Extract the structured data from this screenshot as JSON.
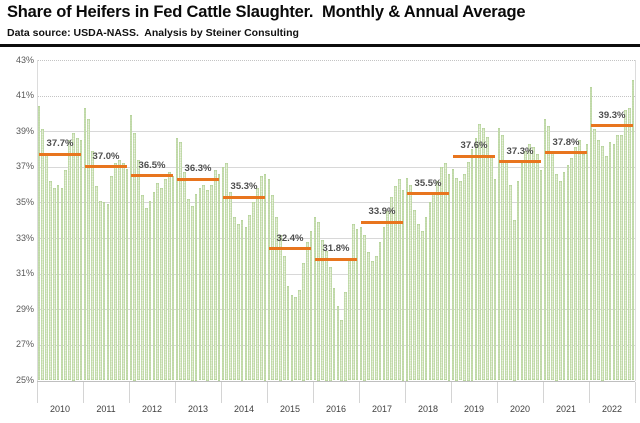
{
  "header": {
    "title": "Share of Heifers in Fed Cattle Slaughter.  Monthly & Annual Average",
    "subtitle": "Data source: USDA-NASS.  Analysis by Steiner Consulting"
  },
  "chart_data": {
    "type": "bar",
    "title": "Share of Heifers in Fed Cattle Slaughter. Monthly & Annual Average",
    "xlabel": "",
    "ylabel": "",
    "y_axis": {
      "min": 25,
      "max": 43,
      "step": 2,
      "unit": "%",
      "dotted_gridlines": [
        43,
        41
      ]
    },
    "legend": "none",
    "grid": "horizontal",
    "series_description": [
      {
        "name": "Monthly share of heifers",
        "type": "bar"
      },
      {
        "name": "Annual average",
        "type": "line-segment"
      }
    ],
    "months_per_year": 12,
    "years": [
      {
        "year": "2010",
        "annual_avg": 37.7,
        "monthly": [
          40.4,
          39.1,
          37.8,
          36.2,
          35.8,
          36.0,
          35.8,
          36.8,
          38.5,
          38.9,
          38.6,
          38.5
        ]
      },
      {
        "year": "2011",
        "annual_avg": 37.0,
        "monthly": [
          40.3,
          39.7,
          37.9,
          35.9,
          35.1,
          35.0,
          34.9,
          36.5,
          37.2,
          37.4,
          37.2,
          36.9
        ]
      },
      {
        "year": "2012",
        "annual_avg": 36.5,
        "monthly": [
          39.9,
          38.9,
          37.4,
          35.4,
          34.7,
          35.1,
          35.6,
          36.1,
          35.8,
          36.3,
          36.7,
          36.5
        ]
      },
      {
        "year": "2013",
        "annual_avg": 36.3,
        "monthly": [
          38.6,
          38.4,
          36.7,
          35.2,
          34.8,
          35.5,
          35.8,
          36.0,
          35.7,
          36.0,
          36.8,
          36.6
        ]
      },
      {
        "year": "2014",
        "annual_avg": 35.3,
        "monthly": [
          37.0,
          37.2,
          35.6,
          34.2,
          33.8,
          34.0,
          33.6,
          34.3,
          35.0,
          35.8,
          36.5,
          36.6
        ]
      },
      {
        "year": "2015",
        "annual_avg": 32.4,
        "monthly": [
          36.3,
          35.4,
          34.2,
          33.2,
          32.0,
          30.3,
          29.8,
          29.7,
          30.1,
          31.6,
          32.8,
          33.4
        ]
      },
      {
        "year": "2016",
        "annual_avg": 31.8,
        "monthly": [
          34.2,
          33.9,
          32.9,
          32.3,
          31.4,
          30.2,
          29.2,
          28.4,
          30.0,
          31.8,
          33.8,
          33.5
        ]
      },
      {
        "year": "2017",
        "annual_avg": 33.9,
        "monthly": [
          33.6,
          33.2,
          32.2,
          31.7,
          32.0,
          32.8,
          33.6,
          34.5,
          35.3,
          35.9,
          36.3,
          35.7
        ]
      },
      {
        "year": "2018",
        "annual_avg": 35.5,
        "monthly": [
          36.4,
          36.0,
          34.6,
          33.8,
          33.4,
          34.2,
          35.0,
          35.6,
          36.2,
          37.0,
          37.2,
          36.6
        ]
      },
      {
        "year": "2019",
        "annual_avg": 37.6,
        "monthly": [
          36.9,
          36.4,
          36.2,
          36.6,
          37.3,
          38.0,
          38.6,
          39.4,
          39.2,
          38.7,
          37.6,
          36.3
        ]
      },
      {
        "year": "2020",
        "annual_avg": 37.3,
        "monthly": [
          39.2,
          38.8,
          37.4,
          36.0,
          34.0,
          36.2,
          37.2,
          37.9,
          38.3,
          38.1,
          37.7,
          36.8
        ]
      },
      {
        "year": "2021",
        "annual_avg": 37.8,
        "monthly": [
          39.7,
          39.3,
          37.9,
          36.6,
          36.2,
          36.7,
          37.1,
          37.5,
          38.1,
          38.5,
          37.7,
          38.3
        ]
      },
      {
        "year": "2022",
        "annual_avg": 39.3,
        "monthly": [
          41.5,
          39.1,
          38.5,
          38.2,
          37.6,
          38.4,
          38.3,
          38.8,
          38.8,
          40.2,
          40.3,
          41.9
        ]
      }
    ],
    "colors": {
      "bar_fill": "#d9e8c8",
      "bar_edge": "#aecf90",
      "avg_line": "#e8751e",
      "avg_label": "#4d4d4d",
      "tick_label": "#595959",
      "year_label": "#404040",
      "gridline": "#d8d8d8"
    }
  }
}
